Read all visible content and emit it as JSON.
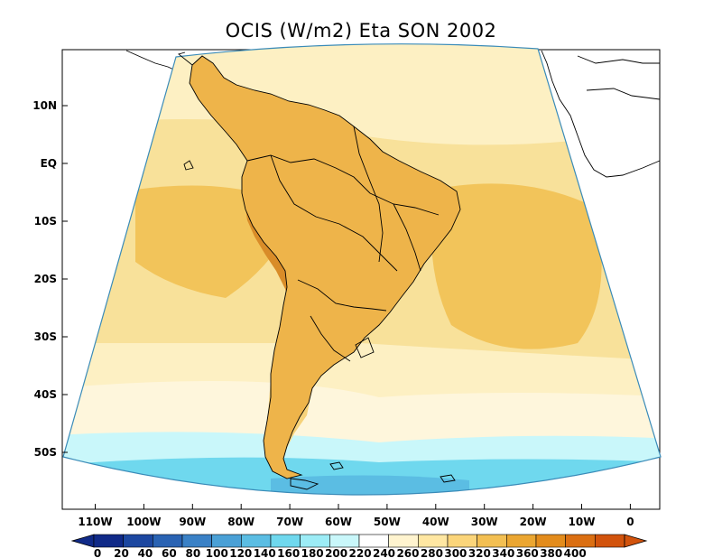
{
  "title": "OCIS (W/m2) Eta SON 2002",
  "lat_labels": [
    "10N",
    "EQ",
    "10S",
    "20S",
    "30S",
    "40S",
    "50S"
  ],
  "lon_labels": [
    "110W",
    "100W",
    "90W",
    "80W",
    "70W",
    "60W",
    "50W",
    "40W",
    "30W",
    "20W",
    "10W",
    "0"
  ],
  "colorbar": {
    "labels": [
      "0",
      "20",
      "40",
      "60",
      "80",
      "100",
      "120",
      "140",
      "160",
      "180",
      "200",
      "220",
      "240",
      "260",
      "280",
      "300",
      "320",
      "340",
      "360",
      "380",
      "400"
    ],
    "colors": [
      "#102a88",
      "#1c47a0",
      "#2a63b3",
      "#3a81c6",
      "#4aa0d6",
      "#5bbde3",
      "#6fd8ee",
      "#9cecf6",
      "#c9f7fa",
      "#ffffff",
      "#fff4cf",
      "#ffe7a2",
      "#fbd57a",
      "#f3bf52",
      "#eba631",
      "#e38c1c",
      "#db6f12",
      "#d2530c"
    ]
  },
  "field_colors": {
    "ocean_north": "#f8e7a0",
    "ocean_mid": "#f3c85d",
    "ocean_light": "#fdf3cf",
    "south_band": "#c9f7fa",
    "polar": "#6fd8ee",
    "polar_deep": "#5bbde3",
    "land_hot": "#e8ac3e",
    "andes": "#d98c28"
  }
}
